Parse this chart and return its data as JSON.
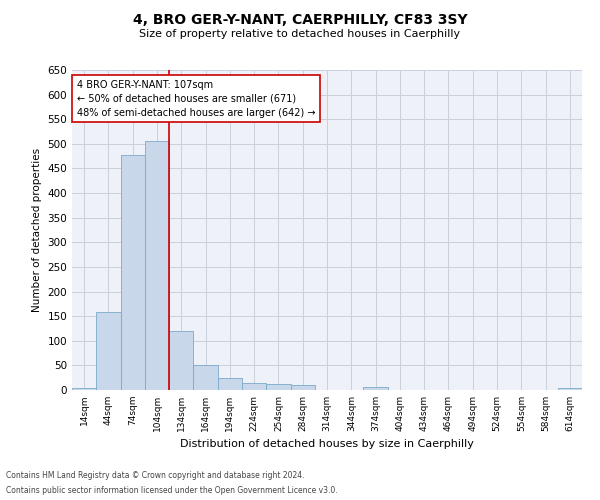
{
  "title": "4, BRO GER-Y-NANT, CAERPHILLY, CF83 3SY",
  "subtitle": "Size of property relative to detached houses in Caerphilly",
  "xlabel": "Distribution of detached houses by size in Caerphilly",
  "ylabel": "Number of detached properties",
  "bar_color": "#c8d8ea",
  "bar_edge_color": "#7aaac8",
  "grid_color": "#c8d0dc",
  "background_color": "#eef2f8",
  "categories": [
    "14sqm",
    "44sqm",
    "74sqm",
    "104sqm",
    "134sqm",
    "164sqm",
    "194sqm",
    "224sqm",
    "254sqm",
    "284sqm",
    "314sqm",
    "344sqm",
    "374sqm",
    "404sqm",
    "434sqm",
    "464sqm",
    "494sqm",
    "524sqm",
    "554sqm",
    "584sqm",
    "614sqm"
  ],
  "values": [
    5,
    158,
    478,
    505,
    120,
    50,
    25,
    14,
    13,
    10,
    0,
    0,
    7,
    0,
    0,
    0,
    0,
    0,
    0,
    0,
    5
  ],
  "ylim": [
    0,
    650
  ],
  "yticks": [
    0,
    50,
    100,
    150,
    200,
    250,
    300,
    350,
    400,
    450,
    500,
    550,
    600,
    650
  ],
  "vline_x": 3.5,
  "vline_color": "#cc0000",
  "annotation_title": "4 BRO GER-Y-NANT: 107sqm",
  "annotation_line1": "← 50% of detached houses are smaller (671)",
  "annotation_line2": "48% of semi-detached houses are larger (642) →",
  "annotation_box_color": "#ffffff",
  "annotation_box_edge": "#cc0000",
  "footer_line1": "Contains HM Land Registry data © Crown copyright and database right 2024.",
  "footer_line2": "Contains public sector information licensed under the Open Government Licence v3.0."
}
